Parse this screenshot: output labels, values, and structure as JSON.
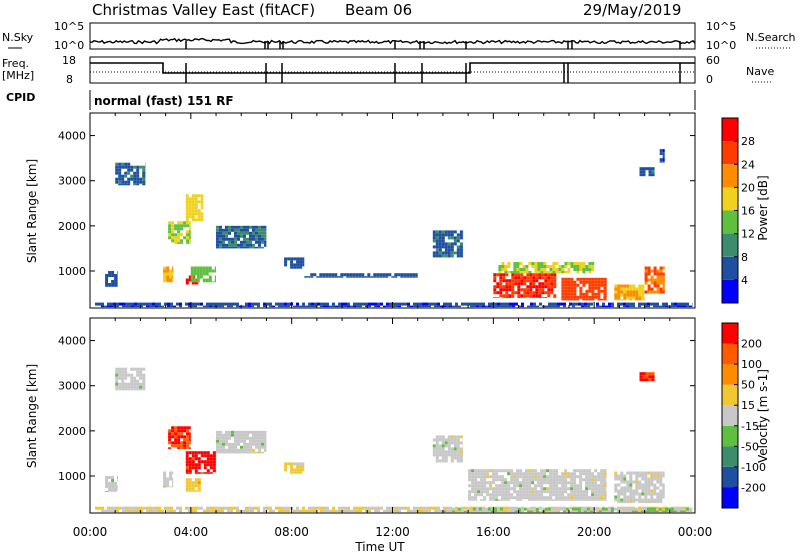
{
  "header": {
    "title": "Christmas Valley East (fitACF)",
    "beam": "Beam 06",
    "date": "29/May/2019"
  },
  "noise_panel": {
    "left_label": "N.Sky",
    "right_label": "N.Search",
    "left_ticks": [
      "10^5",
      "10^0"
    ],
    "right_ticks": [
      "10^5",
      "10^0"
    ]
  },
  "freq_panel": {
    "left_label_1": "Freq.",
    "left_label_2": "[MHz]",
    "right_label": "Nave",
    "left_ticks": [
      "18",
      "8"
    ],
    "right_ticks": [
      "60",
      "0"
    ]
  },
  "cpid_panel": {
    "label": "CPID",
    "text": "normal (fast) 151 RF"
  },
  "x_axis": {
    "label": "Time UT",
    "ticks": [
      "00:00",
      "04:00",
      "08:00",
      "12:00",
      "16:00",
      "20:00",
      "00:00"
    ]
  },
  "colors": {
    "power": [
      "#0000ff",
      "#1e4fa0",
      "#3c8c6e",
      "#5fbf3f",
      "#f0d21e",
      "#ff8c00",
      "#ff3c00",
      "#ff0000"
    ],
    "velocity": [
      "#ff0000",
      "#ff5a00",
      "#ff8c00",
      "#f2c832",
      "#c8c8c8",
      "#5fbf3f",
      "#3c8c6e",
      "#1e4fa0",
      "#0000ff"
    ]
  },
  "chart_data": [
    {
      "type": "heatmap",
      "title": "Power",
      "ylabel": "Slant Range [km]",
      "xlabel": "Time UT",
      "xlim": [
        0,
        24
      ],
      "ylim": [
        180,
        4500
      ],
      "yticks": [
        "1000",
        "2000",
        "3000",
        "4000"
      ],
      "colorbar": {
        "label": "Power [dB]",
        "ticks": [
          "4",
          "8",
          "12",
          "16",
          "20",
          "24",
          "28"
        ],
        "range": [
          0,
          32
        ]
      },
      "regions": [
        {
          "x": [
            0.2,
            23.9
          ],
          "y": [
            200,
            300
          ],
          "value": 5
        },
        {
          "x": [
            0.6,
            1.1
          ],
          "y": [
            650,
            1000
          ],
          "value": 6
        },
        {
          "x": [
            1.0,
            2.2
          ],
          "y": [
            2900,
            3400
          ],
          "value": 7
        },
        {
          "x": [
            2.9,
            3.3
          ],
          "y": [
            750,
            1100
          ],
          "value": 20
        },
        {
          "x": [
            3.1,
            4.0
          ],
          "y": [
            1600,
            2100
          ],
          "value": 16
        },
        {
          "x": [
            3.8,
            4.3
          ],
          "y": [
            700,
            900
          ],
          "value": 30
        },
        {
          "x": [
            4.0,
            5.0
          ],
          "y": [
            750,
            1100
          ],
          "value": 14
        },
        {
          "x": [
            3.8,
            4.5
          ],
          "y": [
            2100,
            2700
          ],
          "value": 18
        },
        {
          "x": [
            5.0,
            7.0
          ],
          "y": [
            1500,
            2000
          ],
          "value": 8
        },
        {
          "x": [
            7.7,
            8.5
          ],
          "y": [
            1050,
            1300
          ],
          "value": 6
        },
        {
          "x": [
            8.5,
            13.0
          ],
          "y": [
            850,
            950
          ],
          "value": 6
        },
        {
          "x": [
            13.6,
            14.8
          ],
          "y": [
            1300,
            1900
          ],
          "value": 7
        },
        {
          "x": [
            16.0,
            18.5
          ],
          "y": [
            400,
            950
          ],
          "value": 28
        },
        {
          "x": [
            18.7,
            20.5
          ],
          "y": [
            350,
            850
          ],
          "value": 26
        },
        {
          "x": [
            16.2,
            20.0
          ],
          "y": [
            950,
            1200
          ],
          "value": 16
        },
        {
          "x": [
            20.8,
            22.0
          ],
          "y": [
            350,
            700
          ],
          "value": 20
        },
        {
          "x": [
            22.0,
            22.8
          ],
          "y": [
            500,
            1100
          ],
          "value": 24
        },
        {
          "x": [
            21.8,
            22.4
          ],
          "y": [
            3100,
            3300
          ],
          "value": 8
        },
        {
          "x": [
            22.6,
            22.8
          ],
          "y": [
            3400,
            3700
          ],
          "value": 5
        }
      ]
    },
    {
      "type": "heatmap",
      "title": "Velocity",
      "ylabel": "Slant Range [km]",
      "xlabel": "Time UT",
      "xlim": [
        0,
        24
      ],
      "ylim": [
        180,
        4500
      ],
      "yticks": [
        "1000",
        "2000",
        "3000",
        "4000"
      ],
      "colorbar": {
        "label": "Velocity [m s-1]",
        "ticks": [
          "200",
          "100",
          "50",
          "15",
          "-15",
          "-50",
          "-100",
          "-200"
        ],
        "range": [
          -250,
          250
        ]
      },
      "regions": [
        {
          "x": [
            0.2,
            23.9
          ],
          "y": [
            200,
            320
          ],
          "value": 30
        },
        {
          "x": [
            14.0,
            23.9
          ],
          "y": [
            200,
            300
          ],
          "value": -20
        },
        {
          "x": [
            0.6,
            1.1
          ],
          "y": [
            650,
            1000
          ],
          "value": 0
        },
        {
          "x": [
            1.0,
            2.2
          ],
          "y": [
            2900,
            3400
          ],
          "value": 0
        },
        {
          "x": [
            2.9,
            3.3
          ],
          "y": [
            750,
            1100
          ],
          "value": 0
        },
        {
          "x": [
            3.1,
            4.0
          ],
          "y": [
            1600,
            2100
          ],
          "value": 200
        },
        {
          "x": [
            3.8,
            5.0
          ],
          "y": [
            1050,
            1550
          ],
          "value": 220
        },
        {
          "x": [
            3.8,
            4.4
          ],
          "y": [
            650,
            950
          ],
          "value": 60
        },
        {
          "x": [
            5.0,
            7.0
          ],
          "y": [
            1500,
            2000
          ],
          "value": 0
        },
        {
          "x": [
            7.7,
            8.5
          ],
          "y": [
            1050,
            1300
          ],
          "value": 40
        },
        {
          "x": [
            13.6,
            14.8
          ],
          "y": [
            1300,
            1900
          ],
          "value": 0
        },
        {
          "x": [
            15.0,
            20.5
          ],
          "y": [
            450,
            1150
          ],
          "value": 0
        },
        {
          "x": [
            20.8,
            22.8
          ],
          "y": [
            400,
            1100
          ],
          "value": 0
        },
        {
          "x": [
            21.8,
            22.4
          ],
          "y": [
            3100,
            3300
          ],
          "value": 200
        }
      ]
    }
  ]
}
